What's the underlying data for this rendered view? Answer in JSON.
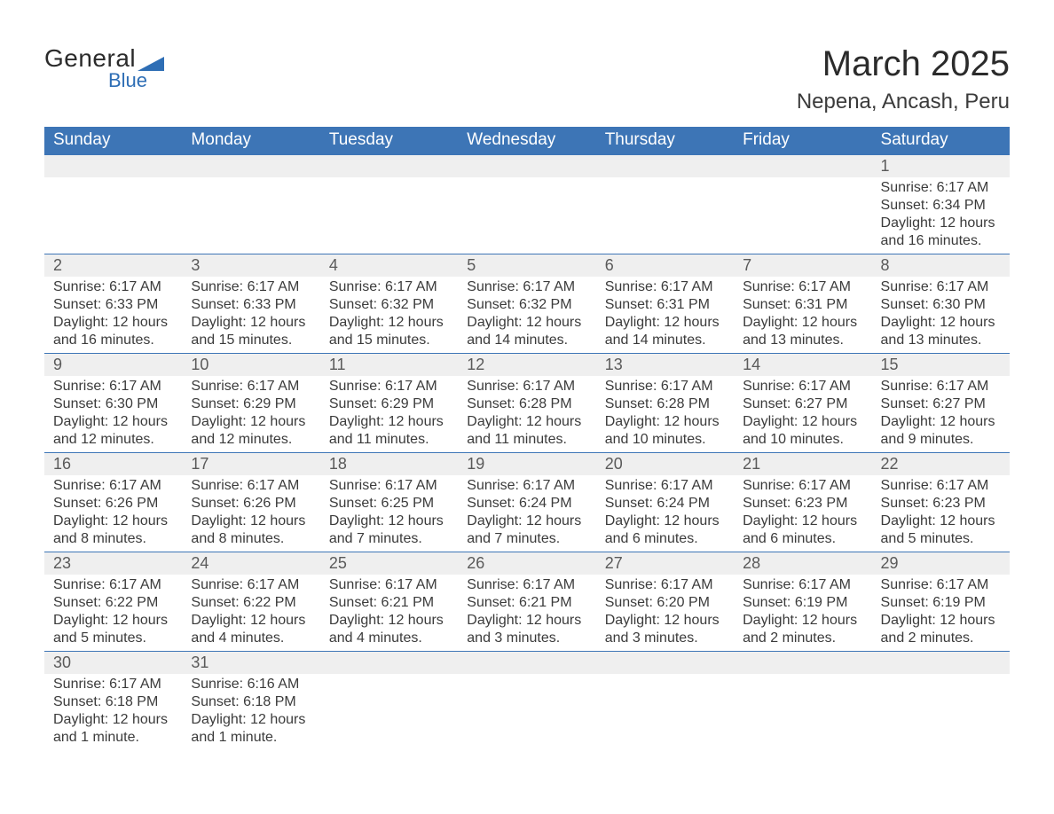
{
  "brand": {
    "general": "General",
    "blue": "Blue",
    "brand_color": "#2e6eb5"
  },
  "header": {
    "title": "March 2025",
    "location": "Nepena, Ancash, Peru"
  },
  "colors": {
    "header_bg": "#3d75b6",
    "header_fg": "#ffffff",
    "daynum_bg": "#efefef",
    "rule": "#3d75b6",
    "text": "#3b3b3b"
  },
  "weekdays": [
    "Sunday",
    "Monday",
    "Tuesday",
    "Wednesday",
    "Thursday",
    "Friday",
    "Saturday"
  ],
  "weeks": [
    [
      null,
      null,
      null,
      null,
      null,
      null,
      {
        "n": "1",
        "sunrise": "Sunrise: 6:17 AM",
        "sunset": "Sunset: 6:34 PM",
        "d1": "Daylight: 12 hours",
        "d2": "and 16 minutes."
      }
    ],
    [
      {
        "n": "2",
        "sunrise": "Sunrise: 6:17 AM",
        "sunset": "Sunset: 6:33 PM",
        "d1": "Daylight: 12 hours",
        "d2": "and 16 minutes."
      },
      {
        "n": "3",
        "sunrise": "Sunrise: 6:17 AM",
        "sunset": "Sunset: 6:33 PM",
        "d1": "Daylight: 12 hours",
        "d2": "and 15 minutes."
      },
      {
        "n": "4",
        "sunrise": "Sunrise: 6:17 AM",
        "sunset": "Sunset: 6:32 PM",
        "d1": "Daylight: 12 hours",
        "d2": "and 15 minutes."
      },
      {
        "n": "5",
        "sunrise": "Sunrise: 6:17 AM",
        "sunset": "Sunset: 6:32 PM",
        "d1": "Daylight: 12 hours",
        "d2": "and 14 minutes."
      },
      {
        "n": "6",
        "sunrise": "Sunrise: 6:17 AM",
        "sunset": "Sunset: 6:31 PM",
        "d1": "Daylight: 12 hours",
        "d2": "and 14 minutes."
      },
      {
        "n": "7",
        "sunrise": "Sunrise: 6:17 AM",
        "sunset": "Sunset: 6:31 PM",
        "d1": "Daylight: 12 hours",
        "d2": "and 13 minutes."
      },
      {
        "n": "8",
        "sunrise": "Sunrise: 6:17 AM",
        "sunset": "Sunset: 6:30 PM",
        "d1": "Daylight: 12 hours",
        "d2": "and 13 minutes."
      }
    ],
    [
      {
        "n": "9",
        "sunrise": "Sunrise: 6:17 AM",
        "sunset": "Sunset: 6:30 PM",
        "d1": "Daylight: 12 hours",
        "d2": "and 12 minutes."
      },
      {
        "n": "10",
        "sunrise": "Sunrise: 6:17 AM",
        "sunset": "Sunset: 6:29 PM",
        "d1": "Daylight: 12 hours",
        "d2": "and 12 minutes."
      },
      {
        "n": "11",
        "sunrise": "Sunrise: 6:17 AM",
        "sunset": "Sunset: 6:29 PM",
        "d1": "Daylight: 12 hours",
        "d2": "and 11 minutes."
      },
      {
        "n": "12",
        "sunrise": "Sunrise: 6:17 AM",
        "sunset": "Sunset: 6:28 PM",
        "d1": "Daylight: 12 hours",
        "d2": "and 11 minutes."
      },
      {
        "n": "13",
        "sunrise": "Sunrise: 6:17 AM",
        "sunset": "Sunset: 6:28 PM",
        "d1": "Daylight: 12 hours",
        "d2": "and 10 minutes."
      },
      {
        "n": "14",
        "sunrise": "Sunrise: 6:17 AM",
        "sunset": "Sunset: 6:27 PM",
        "d1": "Daylight: 12 hours",
        "d2": "and 10 minutes."
      },
      {
        "n": "15",
        "sunrise": "Sunrise: 6:17 AM",
        "sunset": "Sunset: 6:27 PM",
        "d1": "Daylight: 12 hours",
        "d2": "and 9 minutes."
      }
    ],
    [
      {
        "n": "16",
        "sunrise": "Sunrise: 6:17 AM",
        "sunset": "Sunset: 6:26 PM",
        "d1": "Daylight: 12 hours",
        "d2": "and 8 minutes."
      },
      {
        "n": "17",
        "sunrise": "Sunrise: 6:17 AM",
        "sunset": "Sunset: 6:26 PM",
        "d1": "Daylight: 12 hours",
        "d2": "and 8 minutes."
      },
      {
        "n": "18",
        "sunrise": "Sunrise: 6:17 AM",
        "sunset": "Sunset: 6:25 PM",
        "d1": "Daylight: 12 hours",
        "d2": "and 7 minutes."
      },
      {
        "n": "19",
        "sunrise": "Sunrise: 6:17 AM",
        "sunset": "Sunset: 6:24 PM",
        "d1": "Daylight: 12 hours",
        "d2": "and 7 minutes."
      },
      {
        "n": "20",
        "sunrise": "Sunrise: 6:17 AM",
        "sunset": "Sunset: 6:24 PM",
        "d1": "Daylight: 12 hours",
        "d2": "and 6 minutes."
      },
      {
        "n": "21",
        "sunrise": "Sunrise: 6:17 AM",
        "sunset": "Sunset: 6:23 PM",
        "d1": "Daylight: 12 hours",
        "d2": "and 6 minutes."
      },
      {
        "n": "22",
        "sunrise": "Sunrise: 6:17 AM",
        "sunset": "Sunset: 6:23 PM",
        "d1": "Daylight: 12 hours",
        "d2": "and 5 minutes."
      }
    ],
    [
      {
        "n": "23",
        "sunrise": "Sunrise: 6:17 AM",
        "sunset": "Sunset: 6:22 PM",
        "d1": "Daylight: 12 hours",
        "d2": "and 5 minutes."
      },
      {
        "n": "24",
        "sunrise": "Sunrise: 6:17 AM",
        "sunset": "Sunset: 6:22 PM",
        "d1": "Daylight: 12 hours",
        "d2": "and 4 minutes."
      },
      {
        "n": "25",
        "sunrise": "Sunrise: 6:17 AM",
        "sunset": "Sunset: 6:21 PM",
        "d1": "Daylight: 12 hours",
        "d2": "and 4 minutes."
      },
      {
        "n": "26",
        "sunrise": "Sunrise: 6:17 AM",
        "sunset": "Sunset: 6:21 PM",
        "d1": "Daylight: 12 hours",
        "d2": "and 3 minutes."
      },
      {
        "n": "27",
        "sunrise": "Sunrise: 6:17 AM",
        "sunset": "Sunset: 6:20 PM",
        "d1": "Daylight: 12 hours",
        "d2": "and 3 minutes."
      },
      {
        "n": "28",
        "sunrise": "Sunrise: 6:17 AM",
        "sunset": "Sunset: 6:19 PM",
        "d1": "Daylight: 12 hours",
        "d2": "and 2 minutes."
      },
      {
        "n": "29",
        "sunrise": "Sunrise: 6:17 AM",
        "sunset": "Sunset: 6:19 PM",
        "d1": "Daylight: 12 hours",
        "d2": "and 2 minutes."
      }
    ],
    [
      {
        "n": "30",
        "sunrise": "Sunrise: 6:17 AM",
        "sunset": "Sunset: 6:18 PM",
        "d1": "Daylight: 12 hours",
        "d2": "and 1 minute."
      },
      {
        "n": "31",
        "sunrise": "Sunrise: 6:16 AM",
        "sunset": "Sunset: 6:18 PM",
        "d1": "Daylight: 12 hours",
        "d2": "and 1 minute."
      },
      null,
      null,
      null,
      null,
      null
    ]
  ]
}
